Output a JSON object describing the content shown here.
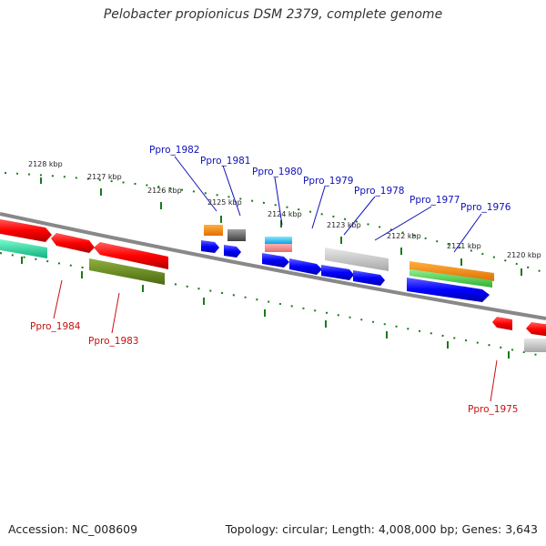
{
  "title": "Pelobacter propionicus DSM 2379, complete genome",
  "footer": {
    "accession": "Accession: NC_008609",
    "summary": "Topology: circular; Length: 4,008,000 bp; Genes: 3,643"
  },
  "ruler_labels": [
    "2128 kbp",
    "2127 kbp",
    "2126 kbp",
    "2125 kbp",
    "2124 kbp",
    "2123 kbp",
    "2122 kbp",
    "2121 kbp",
    "2120 kbp"
  ],
  "top_gene_labels": [
    "Ppro_1982",
    "Ppro_1981",
    "Ppro_1980",
    "Ppro_1979",
    "Ppro_1978",
    "Ppro_1977",
    "Ppro_1976"
  ],
  "bottom_gene_labels": [
    "Ppro_1984",
    "Ppro_1983",
    "Ppro_1975"
  ],
  "colors": {
    "top_label": "#1010b8",
    "bottom_label": "#c81010",
    "tick": "#1a7a1a",
    "backbone": "#888888"
  }
}
